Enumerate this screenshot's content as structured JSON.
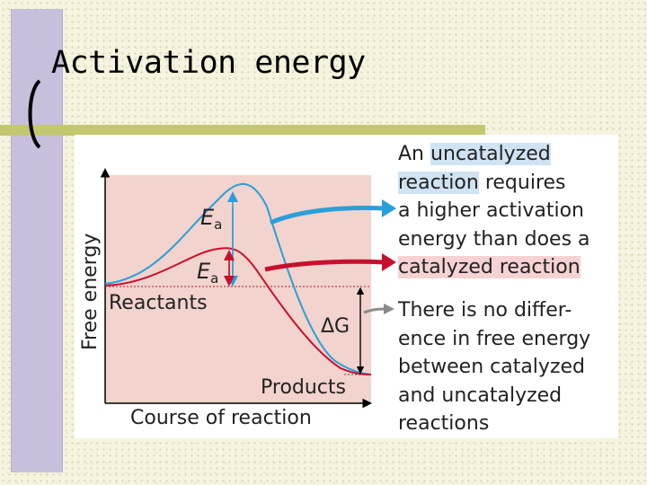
{
  "slide": {
    "title": "Activation energy"
  },
  "diagram": {
    "y_axis_label": "Free energy",
    "x_axis_label": "Course of reaction",
    "reactants_label": "Reactants",
    "products_label": "Products",
    "ea_label_main": "E",
    "ea_label_sub": "a",
    "delta_g_label": "ΔG",
    "colors": {
      "panel": "#f2d3cd",
      "uncatalyzed": "#2a9fd9",
      "catalyzed": "#c8102e",
      "delta_arrow": "#8a8a8a"
    }
  },
  "annotations": {
    "uncatalyzed": {
      "line1_pre": "An ",
      "line1_hl": "uncatalyzed",
      "line2_hl": "reaction",
      "line2_post": " requires",
      "line3": "a higher activation",
      "line4": "energy than does a",
      "line5_hl": "catalyzed reaction"
    },
    "delta_g": {
      "line1": "There is no differ-",
      "line2": "ence in free energy",
      "line3": "between catalyzed",
      "line4": "and uncatalyzed",
      "line5": "reactions"
    }
  }
}
